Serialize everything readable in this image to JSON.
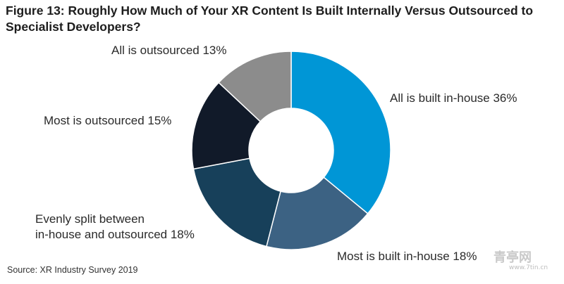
{
  "title": "Figure 13: Roughly How Much of Your XR Content Is Built Internally Versus Outsourced to Specialist Developers?",
  "source": "Source: XR Industry Survey 2019",
  "watermark": {
    "brand": "青亭网",
    "url": "www.7tin.cn"
  },
  "chart_data": {
    "type": "pie",
    "donut": true,
    "title": "Figure 13: Roughly How Much of Your XR Content Is Built Internally Versus Outsourced to Specialist Developers?",
    "slices": [
      {
        "name": "All is built in-house",
        "value": 36,
        "label": "All is built in-house 36%",
        "color": "#0096d6"
      },
      {
        "name": "Most is built in-house",
        "value": 18,
        "label": "Most is built in-house 18%",
        "color": "#3c6283"
      },
      {
        "name": "Evenly split between in-house and outsourced",
        "value": 18,
        "label_lines": [
          "Evenly split between",
          "in-house and outsourced 18%"
        ],
        "color": "#17405a"
      },
      {
        "name": "Most is outsourced",
        "value": 15,
        "label": "Most is outsourced 15%",
        "color": "#111a29"
      },
      {
        "name": "All is outsourced",
        "value": 13,
        "label": "All is outsourced 13%",
        "color": "#8c8c8c"
      }
    ]
  }
}
